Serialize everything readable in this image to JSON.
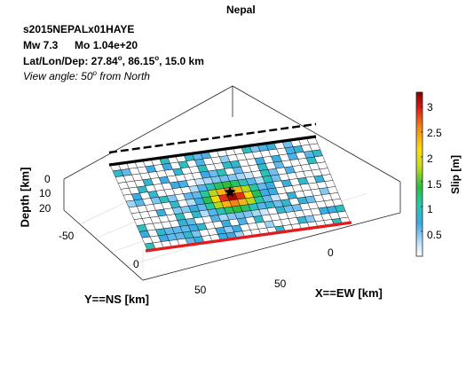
{
  "chart_data": {
    "type": "heatmap",
    "title": "Nepal",
    "event_id": "s2015NEPALx01HAYE",
    "magnitude": "Mw 7.3",
    "moment": "Mo 1.04e+20",
    "location_prefix": "Lat/Lon/Dep: 27.84",
    "location_lon": ", 86.15",
    "location_dep": ", 15.0 km",
    "degree_sup": "o",
    "view_prefix": "View angle:  50",
    "view_suffix": "  from North",
    "xlabel": "X==EW [km]",
    "ylabel": "Y==NS [km]",
    "zlabel": "Depth [km]",
    "colorbar_label": "Slip [m]",
    "x_ticks": [
      "0",
      "50"
    ],
    "y_ticks": [
      "-50",
      "0",
      "50"
    ],
    "z_ticks": [
      "0",
      "10",
      "20"
    ],
    "colorbar_ticks": [
      "0.5",
      "1",
      "1.5",
      "2",
      "2.5",
      "3"
    ],
    "clim": [
      0,
      3.3
    ],
    "grid": true,
    "slip_grid": {
      "rows": 14,
      "cols": 25,
      "hot_row": 7,
      "hot_col": 12,
      "peak_slip": 3.2
    }
  },
  "colors": {
    "accent_red": "#e41a1c",
    "fault_trace": "#000000",
    "fault_edge_dashed": "#000000"
  }
}
